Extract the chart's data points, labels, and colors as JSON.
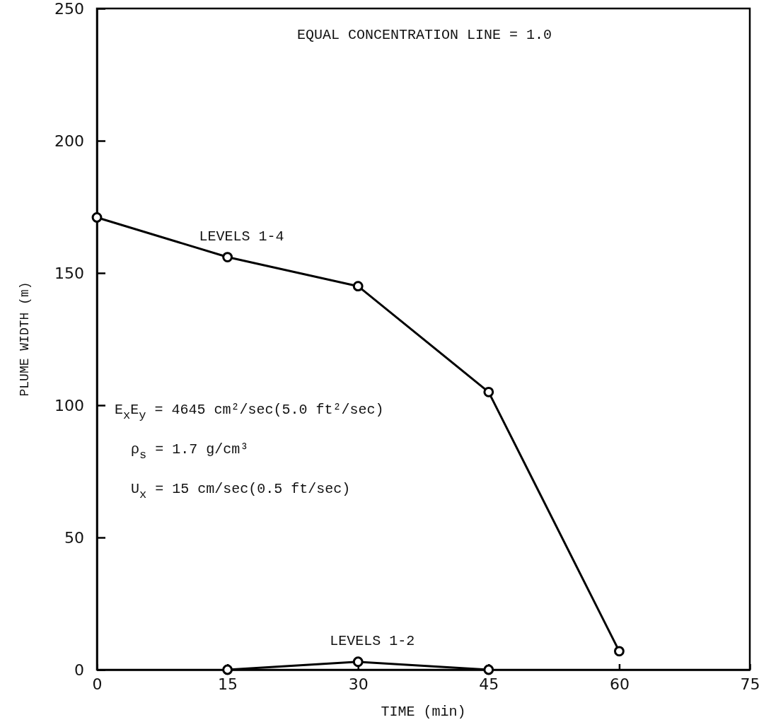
{
  "chart_data": {
    "type": "line",
    "xlabel": "TIME (min)",
    "ylabel": "PLUME WIDTH (m)",
    "series": [
      {
        "name": "LEVELS 1-4",
        "color": "#000000",
        "x": [
          0,
          15,
          30,
          45,
          60
        ],
        "values": [
          171,
          156,
          145,
          105,
          7
        ]
      },
      {
        "name": "LEVELS 1-2",
        "color": "#000000",
        "x": [
          15,
          30,
          45
        ],
        "values": [
          0,
          3,
          0
        ]
      }
    ],
    "xlim": [
      0,
      75
    ],
    "xticks": [
      0,
      15,
      30,
      45,
      60,
      75
    ],
    "ylim": [
      0,
      250
    ],
    "yticks": [
      0,
      50,
      100,
      150,
      200,
      250
    ],
    "marker": "circle",
    "line_style": "solid",
    "grid": false,
    "legend": false,
    "annotations": [
      "EQUAL CONCENTRATION LINE = 1.0",
      "E$_{x}$E$_{y}$ = 4645 cm²/sec(5.0 ft²/sec)",
      "ρ$_{s}$ = 1.7 g/cm³",
      "U$_{x}$ = 15 cm/sec(0.5 ft/sec)"
    ]
  }
}
